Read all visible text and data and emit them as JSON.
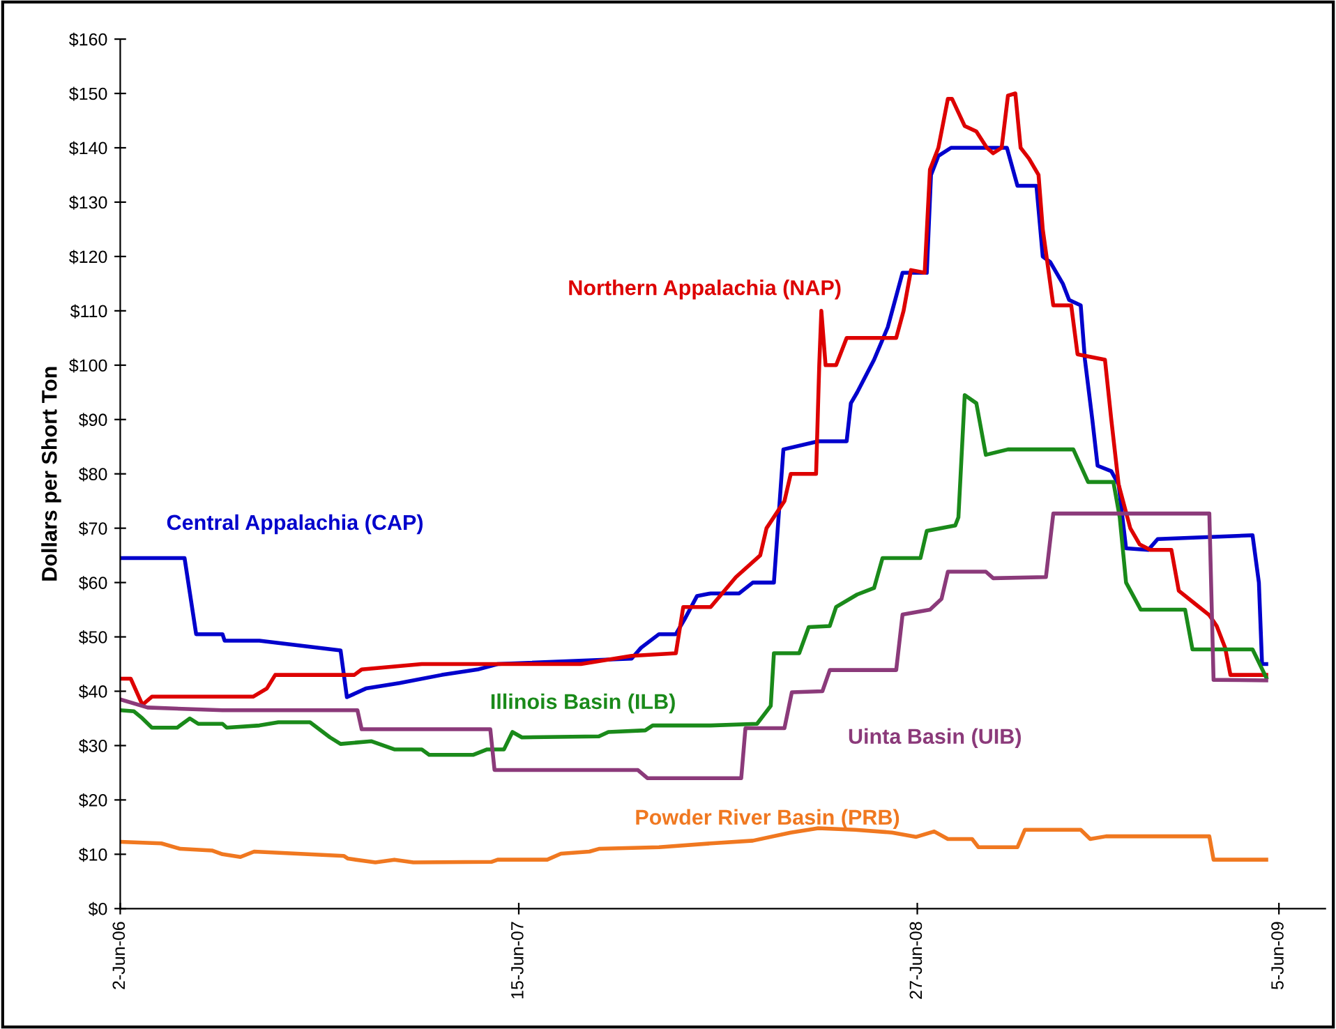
{
  "chart_data": {
    "type": "line",
    "ylabel": "Dollars per Short Ton",
    "xlim": [
      "2006-06-02",
      "2009-07-19"
    ],
    "xticks": [
      {
        "value": "2006-06-02",
        "label": "2-Jun-06"
      },
      {
        "value": "2007-06-15",
        "label": "15-Jun-07"
      },
      {
        "value": "2008-06-27",
        "label": "27-Jun-08"
      },
      {
        "value": "2009-06-05",
        "label": "5-Jun-09"
      }
    ],
    "ylim": [
      0,
      160
    ],
    "yticks": [
      {
        "value": 0,
        "label": "$0"
      },
      {
        "value": 10,
        "label": "$10"
      },
      {
        "value": 20,
        "label": "$20"
      },
      {
        "value": 30,
        "label": "$30"
      },
      {
        "value": 40,
        "label": "$40"
      },
      {
        "value": 50,
        "label": "$50"
      },
      {
        "value": 60,
        "label": "$60"
      },
      {
        "value": 70,
        "label": "$70"
      },
      {
        "value": 80,
        "label": "$80"
      },
      {
        "value": 90,
        "label": "$90"
      },
      {
        "value": 100,
        "label": "$100"
      },
      {
        "value": 110,
        "label": "$110"
      },
      {
        "value": 120,
        "label": "$120"
      },
      {
        "value": 130,
        "label": "$130"
      },
      {
        "value": 140,
        "label": "$140"
      },
      {
        "value": 150,
        "label": "$150"
      },
      {
        "value": 160,
        "label": "$160"
      }
    ],
    "grid": false,
    "legend": false,
    "marker": "none",
    "line_style": "solid",
    "series": [
      {
        "name": "Central Appalachia (CAP)",
        "color": "#0000cc",
        "x": [
          "2006-06-02",
          "2006-08-02",
          "2006-08-13",
          "2006-09-07",
          "2006-09-09",
          "2006-10-12",
          "2006-12-28",
          "2007-01-03",
          "2007-01-21",
          "2007-02-22",
          "2007-04-03",
          "2007-05-07",
          "2007-05-26",
          "2007-09-30",
          "2007-10-09",
          "2007-10-26",
          "2007-11-11",
          "2007-11-20",
          "2007-12-01",
          "2007-12-14",
          "2008-01-10",
          "2008-01-23",
          "2008-02-12",
          "2008-02-21",
          "2008-03-25",
          "2008-04-21",
          "2008-04-25",
          "2008-05-01",
          "2008-05-17",
          "2008-05-30",
          "2008-06-13",
          "2008-06-19",
          "2008-07-06",
          "2008-07-10",
          "2008-07-17",
          "2008-07-29",
          "2008-09-20",
          "2008-09-30",
          "2008-10-18",
          "2008-10-24",
          "2008-10-31",
          "2008-11-12",
          "2008-11-18",
          "2008-11-29",
          "2008-12-03",
          "2008-12-10",
          "2008-12-15",
          "2008-12-28",
          "2009-01-04",
          "2009-01-11",
          "2009-02-01",
          "2009-02-10",
          "2009-05-11",
          "2009-05-17",
          "2009-05-20",
          "2009-05-24"
        ],
        "values": [
          64.5,
          64.5,
          50.5,
          50.5,
          49.3,
          49.3,
          47.5,
          38.9,
          40.5,
          41.5,
          43,
          44,
          45,
          46,
          48,
          50.5,
          50.5,
          53.5,
          57.5,
          58,
          58,
          60,
          60,
          84.5,
          86,
          86,
          93,
          95,
          101,
          107,
          117,
          117,
          117,
          135,
          138.5,
          140,
          140,
          133,
          133,
          120,
          119,
          115,
          112,
          111,
          101,
          90,
          81.5,
          80.5,
          78,
          66.3,
          66,
          68,
          68.7,
          60,
          45,
          45
        ]
      },
      {
        "name": "Northern Appalachia (NAP)",
        "color": "#dd0000",
        "x": [
          "2006-06-02",
          "2006-06-12",
          "2006-06-23",
          "2006-07-02",
          "2006-10-06",
          "2006-10-19",
          "2006-10-27",
          "2007-01-10",
          "2007-01-17",
          "2007-03-15",
          "2007-08-13",
          "2007-09-30",
          "2007-11-11",
          "2007-11-18",
          "2007-12-14",
          "2008-01-07",
          "2008-01-30",
          "2008-02-05",
          "2008-02-22",
          "2008-02-28",
          "2008-03-23",
          "2008-03-26",
          "2008-03-28",
          "2008-04-01",
          "2008-04-11",
          "2008-04-21",
          "2008-06-07",
          "2008-06-14",
          "2008-06-21",
          "2008-07-04",
          "2008-07-09",
          "2008-07-17",
          "2008-07-26",
          "2008-07-30",
          "2008-08-11",
          "2008-08-22",
          "2008-09-01",
          "2008-09-07",
          "2008-09-15",
          "2008-09-21",
          "2008-09-28",
          "2008-10-03",
          "2008-10-11",
          "2008-10-20",
          "2008-10-24",
          "2008-11-03",
          "2008-11-20",
          "2008-11-26",
          "2008-12-22",
          "2008-12-28",
          "2009-01-04",
          "2009-01-15",
          "2009-01-24",
          "2009-02-03",
          "2009-02-23",
          "2009-03-02",
          "2009-03-18",
          "2009-03-31",
          "2009-04-07",
          "2009-04-15",
          "2009-04-20",
          "2009-05-24"
        ],
        "values": [
          42.3,
          42.3,
          37.5,
          39,
          39,
          40.5,
          43,
          43,
          44,
          45,
          45,
          46.5,
          47,
          55.5,
          55.5,
          61,
          65,
          70,
          75,
          80,
          80,
          100,
          110,
          100,
          100,
          105,
          105,
          110,
          117.5,
          117,
          136,
          140,
          149,
          149,
          144,
          143,
          140,
          139,
          140,
          149.6,
          150,
          140,
          138,
          135,
          125,
          111,
          111,
          102,
          101,
          90,
          78,
          70,
          67,
          66,
          66,
          58.5,
          56,
          54,
          52,
          48,
          43,
          43
        ]
      },
      {
        "name": "Illinois Basin (ILB)",
        "color": "#1a8a1a",
        "x": [
          "2006-06-02",
          "2006-06-15",
          "2006-06-23",
          "2006-07-02",
          "2006-07-26",
          "2006-08-07",
          "2006-08-15",
          "2006-09-07",
          "2006-09-11",
          "2006-10-12",
          "2006-10-30",
          "2006-11-29",
          "2006-12-18",
          "2006-12-28",
          "2007-01-26",
          "2007-02-17",
          "2007-03-15",
          "2007-03-22",
          "2007-05-03",
          "2007-05-16",
          "2007-06-01",
          "2007-06-09",
          "2007-06-18",
          "2007-08-30",
          "2007-09-08",
          "2007-10-13",
          "2007-10-20",
          "2007-12-14",
          "2008-01-27",
          "2008-02-09",
          "2008-02-12",
          "2008-03-07",
          "2008-03-16",
          "2008-04-05",
          "2008-04-11",
          "2008-05-01",
          "2008-05-17",
          "2008-05-25",
          "2008-06-30",
          "2008-07-06",
          "2008-08-02",
          "2008-08-05",
          "2008-08-11",
          "2008-08-22",
          "2008-08-31",
          "2008-09-21",
          "2008-11-22",
          "2008-12-06",
          "2008-12-30",
          "2009-01-05",
          "2009-01-11",
          "2009-01-25",
          "2009-03-08",
          "2009-03-15",
          "2009-05-11",
          "2009-05-24"
        ],
        "values": [
          36.5,
          36.3,
          35,
          33.3,
          33.3,
          35,
          34,
          34,
          33.3,
          33.7,
          34.3,
          34.3,
          31.5,
          30.3,
          30.8,
          29.3,
          29.3,
          28.3,
          28.3,
          29.3,
          29.3,
          32.5,
          31.5,
          31.7,
          32.5,
          32.8,
          33.7,
          33.7,
          34,
          37.3,
          47,
          47,
          51.8,
          52,
          55.5,
          57.8,
          59,
          64.5,
          64.5,
          69.5,
          70.5,
          72,
          94.5,
          93,
          83.5,
          84.5,
          84.5,
          78.5,
          78.5,
          72,
          60,
          55,
          55,
          47.7,
          47.7,
          42.5
        ]
      },
      {
        "name": "Uinta Basin (UIB)",
        "color": "#8b3a7a",
        "x": [
          "2006-06-02",
          "2006-06-28",
          "2006-09-07",
          "2007-01-13",
          "2007-01-17",
          "2007-05-19",
          "2007-05-23",
          "2007-10-06",
          "2007-10-15",
          "2008-01-12",
          "2008-01-16",
          "2008-02-22",
          "2008-02-29",
          "2008-03-29",
          "2008-04-05",
          "2008-06-07",
          "2008-06-13",
          "2008-07-09",
          "2008-07-20",
          "2008-07-26",
          "2008-08-31",
          "2008-09-07",
          "2008-10-27",
          "2008-11-03",
          "2009-03-31",
          "2009-04-04",
          "2009-05-24"
        ],
        "values": [
          38.5,
          37,
          36.5,
          36.5,
          33,
          33,
          25.5,
          25.5,
          24,
          24,
          33.2,
          33.2,
          39.8,
          40,
          43.9,
          43.9,
          54.1,
          55,
          57,
          62,
          62,
          60.8,
          61,
          72.7,
          72.7,
          42.1,
          42
        ]
      },
      {
        "name": "Powder River Basin (PRB)",
        "color": "#f07820",
        "x": [
          "2006-06-02",
          "2006-07-11",
          "2006-07-29",
          "2006-08-28",
          "2006-09-07",
          "2006-09-24",
          "2006-10-07",
          "2006-12-31",
          "2007-01-04",
          "2007-01-30",
          "2007-02-17",
          "2007-03-07",
          "2007-05-20",
          "2007-05-26",
          "2007-07-12",
          "2007-07-25",
          "2007-08-21",
          "2007-08-30",
          "2007-10-26",
          "2007-12-14",
          "2008-01-23",
          "2008-02-28",
          "2008-03-25",
          "2008-04-29",
          "2008-06-03",
          "2008-06-26",
          "2008-07-13",
          "2008-07-26",
          "2008-08-18",
          "2008-08-24",
          "2008-09-30",
          "2008-10-07",
          "2008-11-29",
          "2008-12-08",
          "2008-12-23",
          "2009-03-31",
          "2009-04-04",
          "2009-05-24"
        ],
        "values": [
          12.3,
          12,
          11,
          10.7,
          10,
          9.5,
          10.5,
          9.7,
          9.2,
          8.5,
          9,
          8.5,
          8.6,
          9,
          9,
          10.1,
          10.5,
          11,
          11.3,
          12,
          12.5,
          14,
          14.8,
          14.5,
          14,
          13.2,
          14.2,
          12.8,
          12.8,
          11.3,
          11.3,
          14.5,
          14.5,
          12.8,
          13.3,
          13.3,
          9,
          9
        ]
      }
    ]
  }
}
